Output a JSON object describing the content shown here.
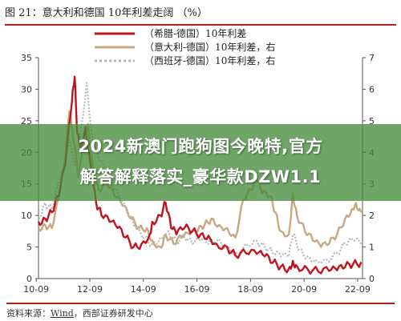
{
  "header": {
    "title": "图 21：意大利和德国 10年利差走阔 （%）"
  },
  "footer": {
    "source_label": "资料来源：",
    "source_name": "Wind",
    "source_rest": "，西部证券研发中心"
  },
  "overlay": {
    "line1": "2024新澳门跑狗图今晚特,官方",
    "line2": "解答解释落实_豪华款DZW1.1",
    "color": "#468c3c"
  },
  "chart_data": {
    "type": "line",
    "title": "图 21：意大利和德国 10年利差走阔 （%）",
    "xlabel": "",
    "ylabel": "",
    "x_ticks": [
      "10-09",
      "12-09",
      "14-09",
      "16-09",
      "18-09",
      "20-09",
      "22-09"
    ],
    "x_range": [
      2010.75,
      2022.85
    ],
    "y_left_ticks": [
      0,
      5,
      10,
      15,
      20,
      25,
      30,
      35
    ],
    "y_left_range": [
      0,
      35
    ],
    "y_right_ticks": [
      0,
      1,
      2,
      3,
      4,
      5,
      6,
      7
    ],
    "y_right_range": [
      0,
      7
    ],
    "legend_position": "top-center",
    "grid": false,
    "series": [
      {
        "name": "（希腊-德国）10年利差",
        "axis": "left",
        "color": "#c0141e",
        "style": "solid",
        "points": [
          [
            2010.75,
            9.0
          ],
          [
            2011.0,
            9.5
          ],
          [
            2011.25,
            10.5
          ],
          [
            2011.5,
            13.0
          ],
          [
            2011.75,
            18.0
          ],
          [
            2012.0,
            28.0
          ],
          [
            2012.1,
            32.0
          ],
          [
            2012.2,
            23.0
          ],
          [
            2012.35,
            21.0
          ],
          [
            2012.5,
            24.0
          ],
          [
            2012.7,
            18.0
          ],
          [
            2012.9,
            12.0
          ],
          [
            2013.1,
            10.0
          ],
          [
            2013.4,
            9.0
          ],
          [
            2013.7,
            8.0
          ],
          [
            2014.0,
            6.5
          ],
          [
            2014.3,
            5.0
          ],
          [
            2014.6,
            5.5
          ],
          [
            2014.9,
            7.0
          ],
          [
            2015.0,
            9.0
          ],
          [
            2015.3,
            10.0
          ],
          [
            2015.5,
            12.0
          ],
          [
            2015.7,
            8.0
          ],
          [
            2015.9,
            7.0
          ],
          [
            2016.2,
            8.0
          ],
          [
            2016.5,
            7.5
          ],
          [
            2016.8,
            7.0
          ],
          [
            2017.1,
            6.8
          ],
          [
            2017.4,
            5.5
          ],
          [
            2017.8,
            5.0
          ],
          [
            2018.1,
            3.7
          ],
          [
            2018.5,
            4.0
          ],
          [
            2018.9,
            3.9
          ],
          [
            2019.2,
            3.5
          ],
          [
            2019.5,
            2.5
          ],
          [
            2019.8,
            1.9
          ],
          [
            2020.1,
            1.6
          ],
          [
            2020.25,
            2.8
          ],
          [
            2020.4,
            2.0
          ],
          [
            2020.8,
            1.5
          ],
          [
            2021.2,
            1.1
          ],
          [
            2021.6,
            1.2
          ],
          [
            2021.9,
            1.3
          ],
          [
            2022.2,
            1.8
          ],
          [
            2022.5,
            2.3
          ],
          [
            2022.8,
            2.6
          ]
        ]
      },
      {
        "name": "（意大利-德国）10年利差，右",
        "axis": "right",
        "color": "#c8a882",
        "style": "solid",
        "points": [
          [
            2010.75,
            1.6
          ],
          [
            2011.0,
            1.7
          ],
          [
            2011.25,
            1.6
          ],
          [
            2011.5,
            2.5
          ],
          [
            2011.75,
            3.8
          ],
          [
            2011.9,
            5.3
          ],
          [
            2012.1,
            4.2
          ],
          [
            2012.25,
            3.2
          ],
          [
            2012.45,
            4.6
          ],
          [
            2012.6,
            4.9
          ],
          [
            2012.8,
            3.4
          ],
          [
            2013.0,
            2.8
          ],
          [
            2013.3,
            3.0
          ],
          [
            2013.6,
            2.6
          ],
          [
            2013.9,
            2.3
          ],
          [
            2014.2,
            1.9
          ],
          [
            2014.5,
            1.6
          ],
          [
            2014.8,
            1.6
          ],
          [
            2015.0,
            1.2
          ],
          [
            2015.3,
            1.0
          ],
          [
            2015.5,
            1.4
          ],
          [
            2015.8,
            1.1
          ],
          [
            2016.1,
            1.3
          ],
          [
            2016.4,
            1.4
          ],
          [
            2016.7,
            1.5
          ],
          [
            2016.95,
            1.7
          ],
          [
            2017.2,
            1.9
          ],
          [
            2017.5,
            1.7
          ],
          [
            2017.8,
            1.6
          ],
          [
            2018.1,
            1.3
          ],
          [
            2018.4,
            2.5
          ],
          [
            2018.7,
            2.8
          ],
          [
            2018.9,
            3.1
          ],
          [
            2019.1,
            2.7
          ],
          [
            2019.4,
            2.6
          ],
          [
            2019.6,
            2.1
          ],
          [
            2019.8,
            1.5
          ],
          [
            2020.1,
            1.4
          ],
          [
            2020.25,
            2.7
          ],
          [
            2020.4,
            2.0
          ],
          [
            2020.7,
            1.5
          ],
          [
            2021.0,
            1.2
          ],
          [
            2021.3,
            1.0
          ],
          [
            2021.6,
            1.1
          ],
          [
            2021.9,
            1.4
          ],
          [
            2022.2,
            1.9
          ],
          [
            2022.45,
            2.2
          ],
          [
            2022.6,
            2.4
          ],
          [
            2022.8,
            2.1
          ]
        ]
      },
      {
        "name": "（西班牙-德国）10年利差，右",
        "axis": "right",
        "color": "#b8b8b8",
        "style": "dotted",
        "points": [
          [
            2010.75,
            1.9
          ],
          [
            2011.0,
            2.4
          ],
          [
            2011.25,
            2.2
          ],
          [
            2011.5,
            3.0
          ],
          [
            2011.75,
            3.6
          ],
          [
            2011.9,
            4.4
          ],
          [
            2012.1,
            3.6
          ],
          [
            2012.3,
            4.4
          ],
          [
            2012.55,
            6.2
          ],
          [
            2012.75,
            4.5
          ],
          [
            2012.95,
            4.0
          ],
          [
            2013.2,
            3.5
          ],
          [
            2013.5,
            3.0
          ],
          [
            2013.8,
            2.5
          ],
          [
            2014.1,
            2.0
          ],
          [
            2014.4,
            1.6
          ],
          [
            2014.7,
            1.3
          ],
          [
            2015.0,
            1.1
          ],
          [
            2015.3,
            1.3
          ],
          [
            2015.6,
            1.5
          ],
          [
            2015.9,
            1.2
          ],
          [
            2016.2,
            1.3
          ],
          [
            2016.5,
            1.1
          ],
          [
            2016.8,
            1.2
          ],
          [
            2017.1,
            1.1
          ],
          [
            2017.4,
            1.2
          ],
          [
            2017.8,
            1.0
          ],
          [
            2018.1,
            0.8
          ],
          [
            2018.5,
            1.1
          ],
          [
            2018.9,
            1.2
          ],
          [
            2019.2,
            1.0
          ],
          [
            2019.5,
            0.8
          ],
          [
            2019.8,
            0.7
          ],
          [
            2020.1,
            0.7
          ],
          [
            2020.25,
            1.4
          ],
          [
            2020.5,
            0.9
          ],
          [
            2020.8,
            0.7
          ],
          [
            2021.1,
            0.6
          ],
          [
            2021.5,
            0.6
          ],
          [
            2021.9,
            0.8
          ],
          [
            2022.2,
            1.1
          ],
          [
            2022.5,
            1.2
          ],
          [
            2022.8,
            1.1
          ]
        ]
      }
    ]
  }
}
